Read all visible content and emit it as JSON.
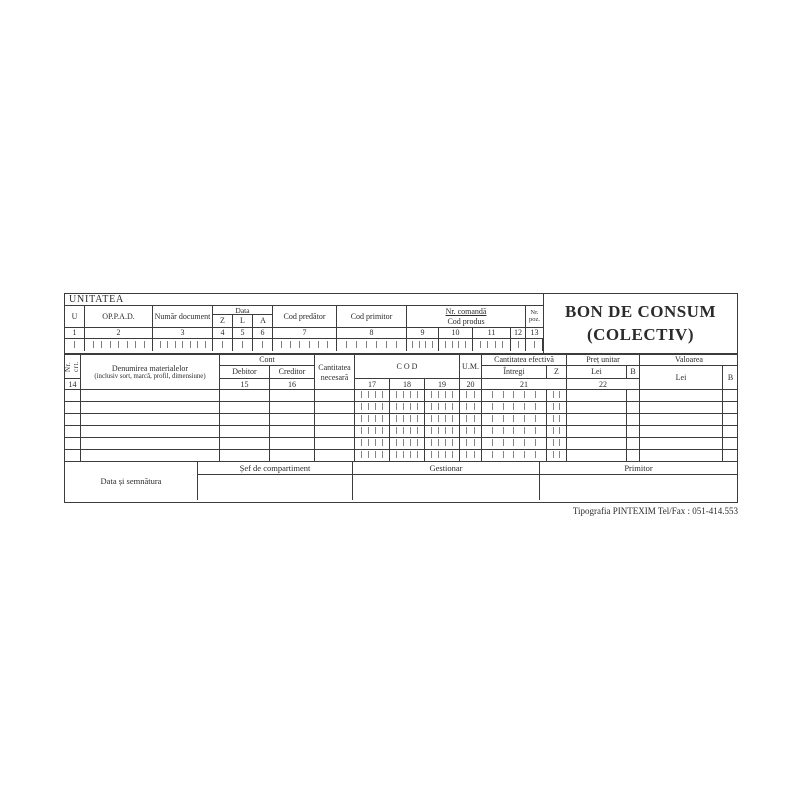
{
  "colors": {
    "ink": "#2b2b2b",
    "border": "#3c3c3c",
    "tick": "#7d7d7d",
    "paper": "#ffffff"
  },
  "form": {
    "unitatea_label": "UNITATEA",
    "title_line1": "BON DE CONSUM",
    "title_line2": "(COLECTIV)",
    "footer": "Tipografia PINTEXIM Tel/Fax : 051-414.553"
  },
  "upper_table": {
    "u_label": "U",
    "oppad_label": "OP.P.A.D.",
    "numar_document_label": "Număr document",
    "data_label": "Data",
    "z_label": "Z",
    "l_label": "L",
    "a_label": "A",
    "cod_predator_label": "Cod predător",
    "cod_primitor_label": "Cod primitor",
    "nr_comanda_label": "Nr. comandă",
    "cod_produs_label": "Cod produs",
    "nr_poz_line1": "Nr.",
    "nr_poz_line2": "poz.",
    "numbers": [
      "1",
      "2",
      "3",
      "4",
      "5",
      "6",
      "7",
      "8",
      "9",
      "10",
      "11",
      "12",
      "13"
    ],
    "tick_counts": [
      1,
      7,
      7,
      1,
      1,
      1,
      6,
      6,
      4,
      4,
      4,
      1,
      1
    ]
  },
  "main_table": {
    "nr_crt_label": "Nr. crt.",
    "denumirea_label": "Denumirea materialelor",
    "denumirea_sub_label": "(inclusiv sort, marcă, profil, dimensiune)",
    "cont_label": "Cont",
    "debitor_label": "Debitor",
    "creditor_label": "Creditor",
    "cantitatea_necesara_line1": "Cantitatea",
    "cantitatea_necesara_line2": "necesară",
    "cod_label": "C O D",
    "um_label": "U.M.",
    "cantitatea_efectiva_label": "Cantitatea efectivă",
    "intregi_label": "Întregi",
    "z_label": "Z",
    "pret_unitar_label": "Preț unitar",
    "pret_lei_label": "Lei",
    "pret_b_label": "B",
    "valoarea_label": "Valoarea",
    "valoarea_lei_label": "Lei",
    "valoarea_b_label": "B",
    "numbers": {
      "nr_crt": "14",
      "debitor": "15",
      "creditor": "16",
      "cod1": "17",
      "cod2": "18",
      "cod3": "19",
      "um": "20",
      "intregi_z": "21",
      "pret": "22"
    },
    "body_rows": 6,
    "body_tick_counts": {
      "cod1": 4,
      "cod2": 4,
      "cod3": 4,
      "um": 2,
      "intregi": 5,
      "z": 2
    }
  },
  "signatures": {
    "data_semnatura_label": "Data și semnătura",
    "sef_label": "Șef de compartiment",
    "gestionar_label": "Gestionar",
    "primitor_label": "Primitor"
  }
}
